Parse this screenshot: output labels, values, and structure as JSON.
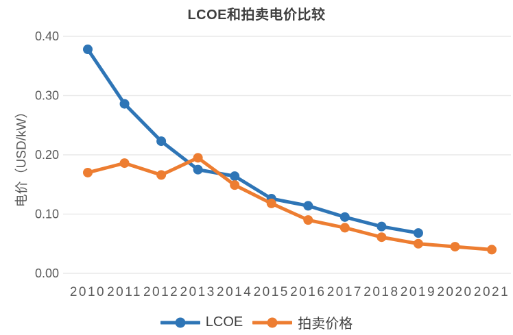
{
  "chart_data": {
    "type": "line",
    "title": "LCOE和拍卖电价比较",
    "xlabel": "",
    "ylabel": "电价（USD/kW）",
    "categories": [
      "2010",
      "2011",
      "2012",
      "2013",
      "2014",
      "2015",
      "2016",
      "2017",
      "2018",
      "2019",
      "2020",
      "2021"
    ],
    "series": [
      {
        "name": "LCOE",
        "slug": "lcoe",
        "color": "#2E75B6",
        "values": [
          0.378,
          0.286,
          0.223,
          0.175,
          0.164,
          0.126,
          0.114,
          0.095,
          0.079,
          0.068,
          null,
          null
        ]
      },
      {
        "name": "拍卖价格",
        "slug": "auction-price",
        "color": "#ED7D31",
        "values": [
          0.17,
          0.186,
          0.166,
          0.195,
          0.149,
          0.118,
          0.09,
          0.077,
          0.061,
          0.05,
          0.045,
          0.04
        ]
      }
    ],
    "ylim": [
      0.0,
      0.4
    ],
    "yticks": [
      "0.00",
      "0.10",
      "0.20",
      "0.30",
      "0.40"
    ],
    "grid": "horizontal",
    "legend_position": "bottom",
    "colors": {
      "background": "#FFFFFF",
      "gridline": "#E9E9E9",
      "tick_text": "#595959",
      "title_text": "#3F3F3F",
      "legend_text": "#404040"
    }
  }
}
